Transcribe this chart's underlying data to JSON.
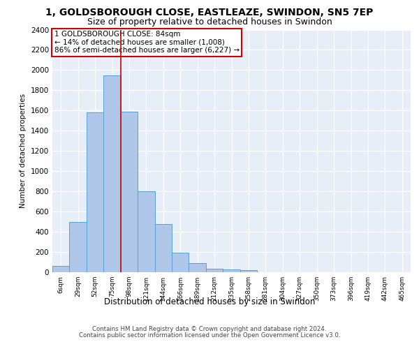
{
  "title_line1": "1, GOLDSBOROUGH CLOSE, EASTLEAZE, SWINDON, SN5 7EP",
  "title_line2": "Size of property relative to detached houses in Swindon",
  "xlabel": "Distribution of detached houses by size in Swindon",
  "ylabel": "Number of detached properties",
  "footer_line1": "Contains HM Land Registry data © Crown copyright and database right 2024.",
  "footer_line2": "Contains public sector information licensed under the Open Government Licence v3.0.",
  "annotation_line1": "1 GOLDSBOROUGH CLOSE: 84sqm",
  "annotation_line2": "← 14% of detached houses are smaller (1,008)",
  "annotation_line3": "86% of semi-detached houses are larger (6,227) →",
  "bar_labels": [
    "6sqm",
    "29sqm",
    "52sqm",
    "75sqm",
    "98sqm",
    "121sqm",
    "144sqm",
    "166sqm",
    "189sqm",
    "212sqm",
    "235sqm",
    "258sqm",
    "281sqm",
    "304sqm",
    "327sqm",
    "350sqm",
    "373sqm",
    "396sqm",
    "419sqm",
    "442sqm",
    "465sqm"
  ],
  "bar_values": [
    60,
    500,
    1580,
    1950,
    1590,
    800,
    480,
    195,
    90,
    35,
    28,
    20,
    0,
    0,
    0,
    0,
    0,
    0,
    0,
    0,
    0
  ],
  "bar_color": "#aec6e8",
  "bar_edge_color": "#5a9fd4",
  "vline_x": 3.5,
  "vline_color": "#cc0000",
  "annotation_box_color": "#cc0000",
  "plot_bg_color": "#e8eef7",
  "ylim": [
    0,
    2400
  ],
  "yticks": [
    0,
    200,
    400,
    600,
    800,
    1000,
    1200,
    1400,
    1600,
    1800,
    2000,
    2200,
    2400
  ],
  "grid_color": "#ffffff",
  "title_fontsize": 10,
  "subtitle_fontsize": 9
}
